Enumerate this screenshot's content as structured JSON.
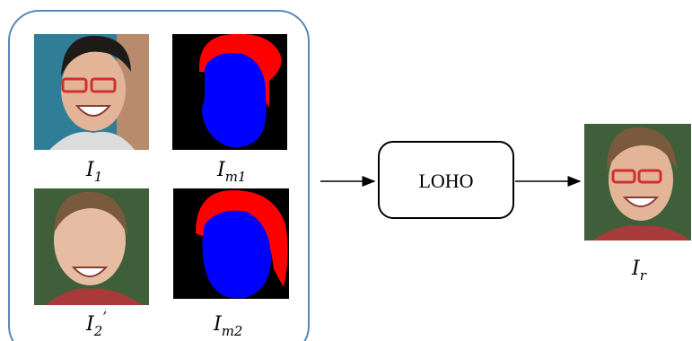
{
  "nodes": [
    {
      "base": "I",
      "sub": "1"
    },
    {
      "base": "I",
      "sub": "m1"
    },
    {
      "base": "I",
      "sub": "2",
      "mark": "’"
    },
    {
      "base": "I",
      "sub": "m2"
    },
    {
      "base": "I",
      "sub": "r"
    }
  ],
  "process": {
    "label": "LOHO"
  }
}
